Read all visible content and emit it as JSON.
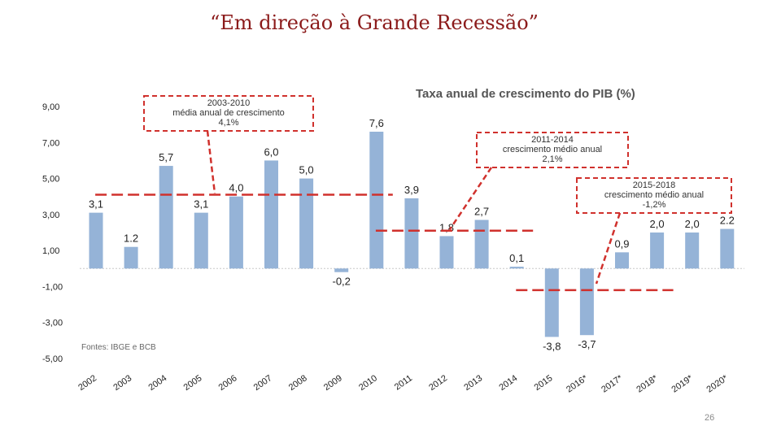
{
  "slide": {
    "title": "“Em direção à Grande Recessão”",
    "page_number": "26"
  },
  "chart_data": {
    "type": "bar",
    "title": "Taxa anual de crescimento do PIB  (%)",
    "source": "Fontes: IBGE e BCB",
    "categories": [
      "2002",
      "2003",
      "2004",
      "2005",
      "2006",
      "2007",
      "2008",
      "2009",
      "2010",
      "2011",
      "2012",
      "2013",
      "2014",
      "2015",
      "2016*",
      "2017*",
      "2018*",
      "2019*",
      "2020*"
    ],
    "values": [
      3.1,
      1.2,
      5.7,
      3.1,
      4.0,
      6.0,
      5.0,
      -0.2,
      7.6,
      3.9,
      1.8,
      2.7,
      0.1,
      -3.8,
      -3.7,
      0.9,
      2.0,
      2.0,
      2.2
    ],
    "value_labels": [
      "3,1",
      "1.2",
      "5,7",
      "3,1",
      "4,0",
      "6,0",
      "5,0",
      "-0,2",
      "7,6",
      "3,9",
      "1,8",
      "2,7",
      "0,1",
      "-3,8",
      "-3,7",
      "0,9",
      "2,0",
      "2,0",
      "2.2"
    ],
    "y_ticks": [
      9,
      7,
      5,
      3,
      1,
      -1,
      -3,
      -5
    ],
    "y_tick_labels": [
      "9,00",
      "7,00",
      "5,00",
      "3,00",
      "1,00",
      "-1,00",
      "-3,00",
      "-5,00"
    ],
    "ylim": [
      -5,
      9
    ],
    "bar_color": "#95b3d7",
    "annotation_color": "#d0312d",
    "annotations": [
      {
        "lines": [
          "2003-2010",
          "média anual de crescimento",
          "4,1%"
        ],
        "avg": 4.1,
        "from": 1,
        "to": 8
      },
      {
        "lines": [
          "2011-2014",
          "crescimento médio anual",
          "2,1%"
        ],
        "avg": 2.1,
        "from": 9,
        "to": 12
      },
      {
        "lines": [
          "2015-2018",
          "crescimento médio anual",
          "-1,2%"
        ],
        "avg": -1.2,
        "from": 13,
        "to": 16
      }
    ]
  }
}
